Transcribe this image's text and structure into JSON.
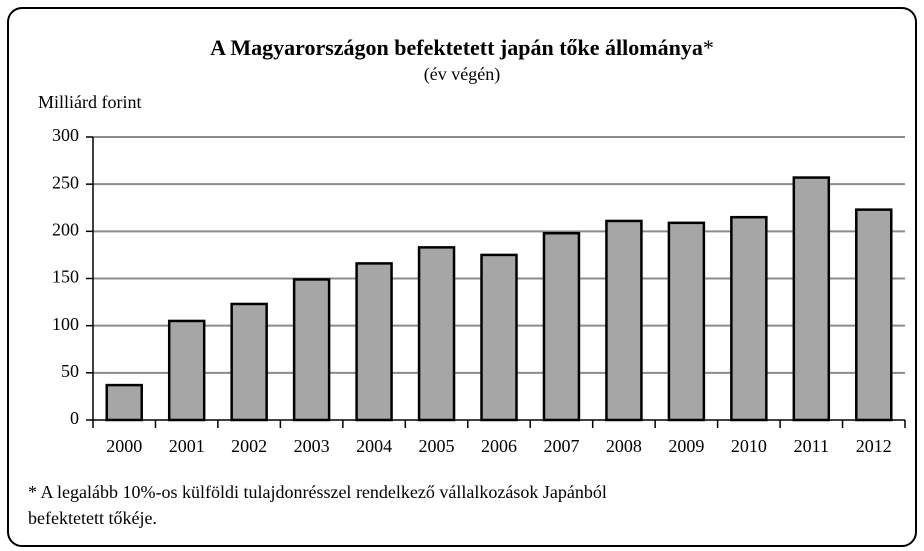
{
  "chart_data": {
    "type": "bar",
    "title": "A Magyarországon befektetett japán tőke állománya",
    "title_marker": "*",
    "subtitle": "(év végén)",
    "y_label": "Milliárd forint",
    "categories": [
      "2000",
      "2001",
      "2002",
      "2003",
      "2004",
      "2005",
      "2006",
      "2007",
      "2008",
      "2009",
      "2010",
      "2011",
      "2012"
    ],
    "values": [
      37,
      105,
      123,
      149,
      166,
      183,
      175,
      198,
      211,
      209,
      215,
      257,
      223
    ],
    "color": "#a6a6a6",
    "ylim": [
      0,
      300
    ],
    "yticks": [
      0,
      50,
      100,
      150,
      200,
      250,
      300
    ],
    "grid": true,
    "footnote": [
      "* A legalább 10%-os külföldi tulajdonrésszel rendelkező vállalkozások Japánból",
      "befektetett tőkéje."
    ]
  }
}
